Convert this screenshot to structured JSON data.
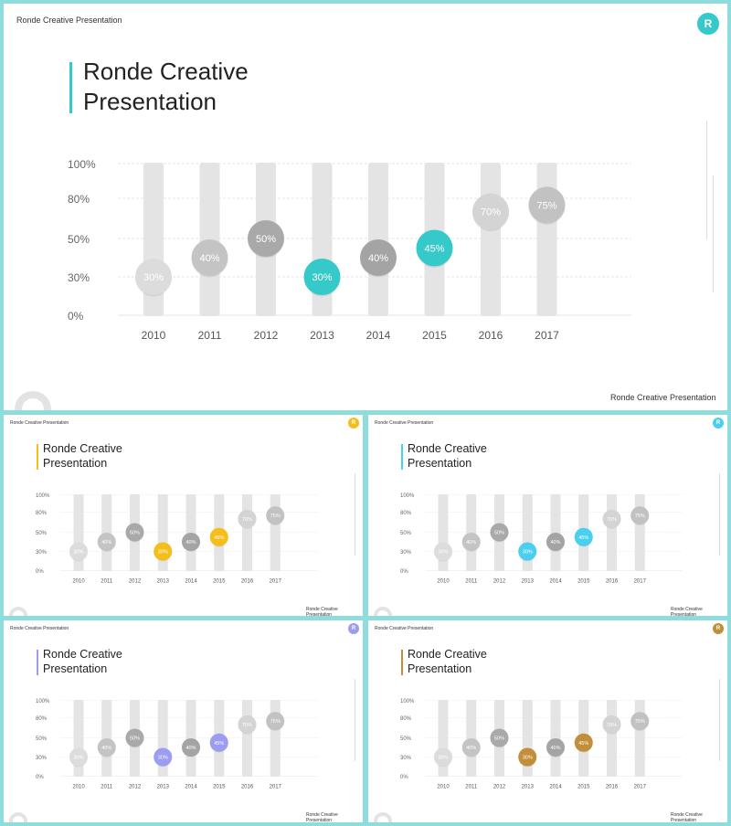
{
  "header_text": "Ronde Creative Presentation",
  "logo_letter": "R",
  "title_line1": "Ronde Creative",
  "title_line2": "Presentation",
  "footer_text": "Ronde Creative Presentation",
  "chart_data": {
    "type": "scatter",
    "categories": [
      "2010",
      "2011",
      "2012",
      "2013",
      "2014",
      "2015",
      "2016",
      "2017"
    ],
    "y_ticks": [
      "100%",
      "80%",
      "50%",
      "30%",
      "0%"
    ],
    "values": [
      30,
      40,
      50,
      30,
      40,
      45,
      70,
      75
    ],
    "labels": [
      "30%",
      "40%",
      "50%",
      "30%",
      "40%",
      "45%",
      "70%",
      "75%"
    ],
    "xlabel": "",
    "ylabel": "",
    "grid": true
  },
  "variants": [
    {
      "accent": "#35c9c9"
    },
    {
      "accent": "#f5be1b"
    },
    {
      "accent": "#4ad0ee"
    },
    {
      "accent": "#9c9cf2"
    },
    {
      "accent": "#c28e3a"
    }
  ],
  "marker_colors": [
    "#dcdcdc",
    "#c4c4c4",
    "#a9a9a9",
    "accent",
    "#a4a4a4",
    "accent",
    "#d4d4d4",
    "#c2c2c2"
  ]
}
